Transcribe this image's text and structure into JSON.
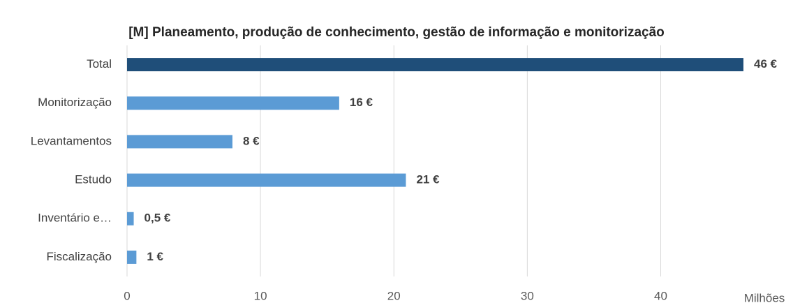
{
  "chart_data": {
    "type": "bar",
    "orientation": "horizontal",
    "title": "[M] Planeamento, produção de conhecimento, gestão de informação e monitorização",
    "categories": [
      "Total",
      "Monitorização",
      "Levantamentos",
      "Estudo",
      "Inventário e…",
      "Fiscalização"
    ],
    "values": [
      46.2,
      15.9,
      7.9,
      20.9,
      0.5,
      0.7
    ],
    "value_labels": [
      "46 €",
      "16 €",
      "8 €",
      "21 €",
      "0,5 €",
      "1 €"
    ],
    "colors": [
      "#1f4e79",
      "#5b9bd5",
      "#5b9bd5",
      "#5b9bd5",
      "#5b9bd5",
      "#5b9bd5"
    ],
    "xlim": [
      0,
      46.2
    ],
    "xticks": [
      0,
      10,
      20,
      30,
      40
    ],
    "grid": true,
    "x_unit_label": "Milhões"
  }
}
